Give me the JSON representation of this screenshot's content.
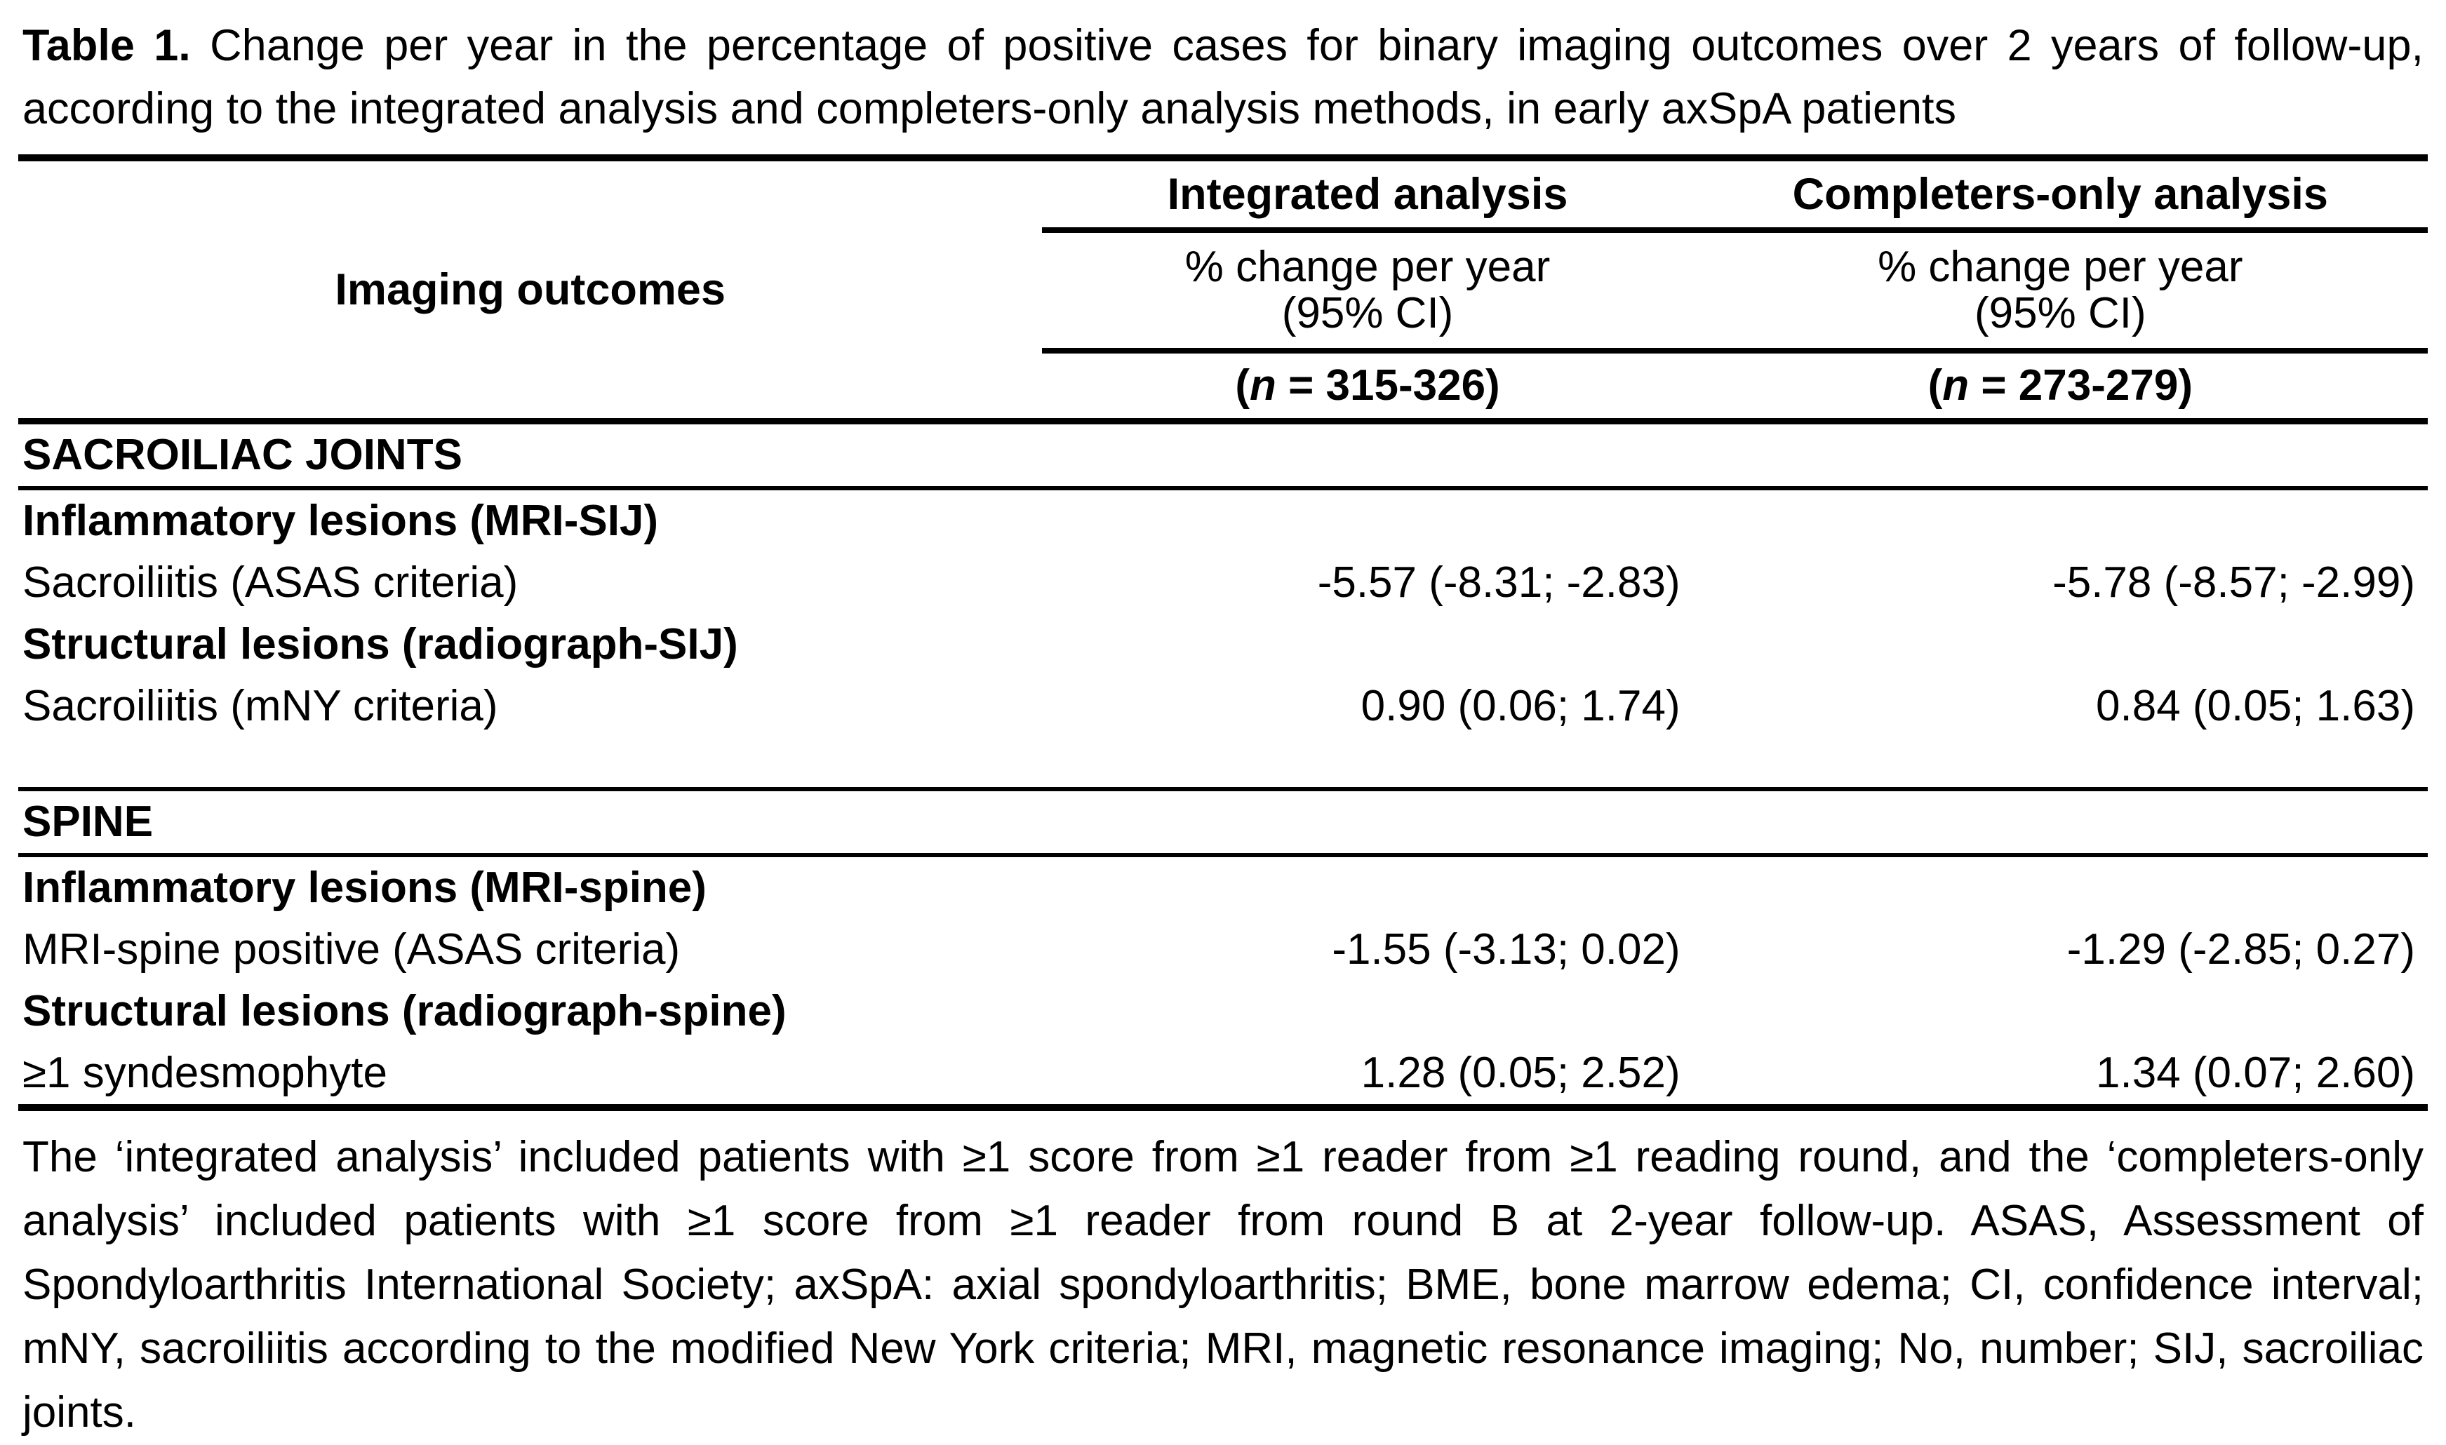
{
  "title": {
    "label": "Table 1.",
    "text": "Change per year in the percentage of positive cases for binary imaging outcomes over 2 years of follow-up, according to the integrated analysis and completers-only analysis methods, in early axSpA patients"
  },
  "table": {
    "imaging_outcomes_header": "Imaging outcomes",
    "columns": [
      {
        "name": "Integrated analysis",
        "measure_line1": "% change per year",
        "measure_line2": "(95% CI)",
        "n_open": "(",
        "n_symbol": "n",
        "n_rest": " = 315-326)"
      },
      {
        "name": "Completers-only analysis",
        "measure_line1": "% change per year",
        "measure_line2": "(95% CI)",
        "n_open": "(",
        "n_symbol": "n",
        "n_rest": " = 273-279)"
      }
    ],
    "sections": [
      {
        "header": "SACROILIAC JOINTS",
        "rows": [
          {
            "label": "Inflammatory lesions (MRI-SIJ)",
            "integrated": "",
            "completers": ""
          },
          {
            "label": "Sacroiliitis (ASAS criteria)",
            "integrated": "-5.57 (-8.31; -2.83)",
            "completers": "-5.78 (-8.57; -2.99)"
          },
          {
            "label": "Structural lesions (radiograph-SIJ)",
            "integrated": "",
            "completers": ""
          },
          {
            "label": "Sacroiliitis (mNY criteria)",
            "integrated": "0.90 (0.06; 1.74)",
            "completers": "0.84 (0.05; 1.63)"
          }
        ]
      },
      {
        "header": "SPINE",
        "rows": [
          {
            "label": "Inflammatory lesions (MRI-spine)",
            "integrated": "",
            "completers": ""
          },
          {
            "label": "MRI-spine positive (ASAS criteria)",
            "integrated": "-1.55 (-3.13; 0.02)",
            "completers": "-1.29 (-2.85; 0.27)"
          },
          {
            "label": "Structural lesions (radiograph-spine)",
            "integrated": "",
            "completers": ""
          },
          {
            "label": "≥1 syndesmophyte",
            "integrated": "1.28 (0.05; 2.52)",
            "completers": "1.34 (0.07; 2.60)"
          }
        ]
      }
    ]
  },
  "footnote": "The ‘integrated analysis’ included patients with ≥1 score from ≥1 reader from ≥1 reading round, and the ‘completers-only analysis’ included patients with ≥1 score from ≥1 reader from round B at 2-year follow-up. ASAS, Assessment of Spondyloarthritis International Society; axSpA: axial spondyloarthritis; BME, bone marrow edema; CI, confidence interval; mNY, sacroiliitis according to the modified New York criteria; MRI, magnetic resonance imaging; No, number; SIJ, sacroiliac joints."
}
